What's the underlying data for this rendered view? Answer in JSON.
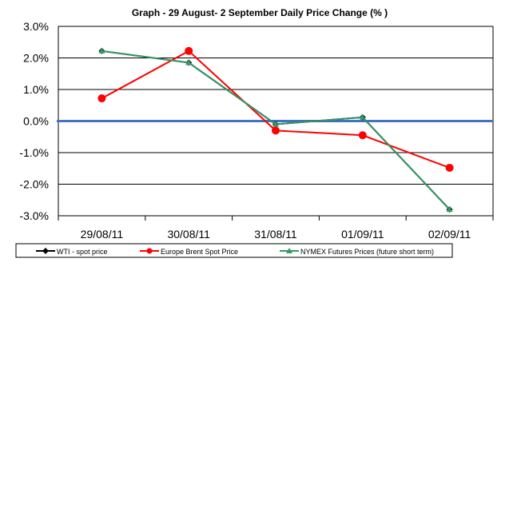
{
  "chart_data": {
    "type": "line",
    "title": "Graph -   29 August- 2 September Daily Price Change (% )",
    "categories": [
      "29/08/11",
      "30/08/11",
      "31/08/11",
      "01/09/11",
      "02/09/11"
    ],
    "ylim": [
      -3.0,
      3.0
    ],
    "yticks": [
      "3.0%",
      "2.0%",
      "1.0%",
      "0.0%",
      "-1.0%",
      "-2.0%",
      "-3.0%"
    ],
    "ytick_values": [
      3,
      2,
      1,
      0,
      -1,
      -2,
      -3
    ],
    "grid": true,
    "legend_position": "bottom",
    "series": [
      {
        "name": "WTI - spot price",
        "color": "#000000",
        "marker": "diamond",
        "values": [
          2.22,
          1.85,
          -0.1,
          0.12,
          -2.8
        ]
      },
      {
        "name": "Europe Brent Spot Price",
        "color": "#ff0000",
        "marker": "circle",
        "values": [
          0.72,
          2.22,
          -0.3,
          -0.45,
          -1.48
        ]
      },
      {
        "name": "NYMEX Futures Prices (future short term)",
        "color": "#339966",
        "marker": "triangle",
        "values": [
          2.22,
          1.85,
          -0.1,
          0.12,
          -2.8
        ]
      }
    ],
    "zero_line_color": "#4472c4"
  }
}
